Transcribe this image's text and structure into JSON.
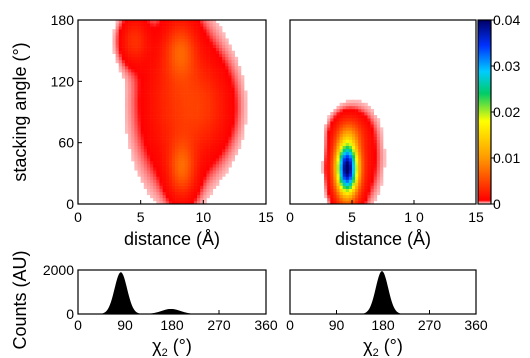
{
  "chart_data": [
    {
      "type": "heatmap",
      "panel": "top-left",
      "xlabel": "distance (Å)",
      "ylabel": "stacking angle (°)",
      "xlim": [
        0,
        15
      ],
      "ylim": [
        0,
        180
      ],
      "xticks": [
        "0",
        "5",
        "10",
        "15"
      ],
      "yticks": [
        "0",
        "60",
        "120",
        "180"
      ],
      "blobs": [
        {
          "x": 4.5,
          "y": 160,
          "sx": 0.7,
          "sy": 14,
          "weight": 0.0035
        },
        {
          "x": 8.0,
          "y": 100,
          "sx": 1.8,
          "sy": 45,
          "weight": 0.0035
        },
        {
          "x": 10.2,
          "y": 95,
          "sx": 1.4,
          "sy": 28,
          "weight": 0.0025
        },
        {
          "x": 8.3,
          "y": 35,
          "sx": 0.7,
          "sy": 18,
          "weight": 0.006
        },
        {
          "x": 8.2,
          "y": 150,
          "sx": 0.8,
          "sy": 18,
          "weight": 0.005
        }
      ]
    },
    {
      "type": "heatmap",
      "panel": "top-right",
      "xlabel": "distance (Å)",
      "xlim": [
        0,
        15
      ],
      "ylim": [
        0,
        180
      ],
      "xticks": [
        "0",
        "5",
        "1 0",
        "15"
      ],
      "blobs": [
        {
          "x": 4.6,
          "y": 35,
          "sx": 0.6,
          "sy": 18,
          "weight": 0.04
        },
        {
          "x": 4.8,
          "y": 70,
          "sx": 0.8,
          "sy": 10,
          "weight": 0.004
        },
        {
          "x": 5.5,
          "y": 45,
          "sx": 1.0,
          "sy": 25,
          "weight": 0.002
        }
      ]
    },
    {
      "type": "area",
      "panel": "bottom-left",
      "xlabel": "χ2 (°)",
      "ylabel": "Counts (AU)",
      "xlim": [
        0,
        360
      ],
      "ylim": [
        0,
        2000
      ],
      "xticks": [
        "0",
        "90",
        "180",
        "270",
        "360"
      ],
      "yticks": [
        "0",
        "2000"
      ],
      "peaks": [
        {
          "x": 82,
          "y": 1900,
          "sx": 12
        },
        {
          "x": 178,
          "y": 230,
          "sx": 18
        }
      ]
    },
    {
      "type": "area",
      "panel": "bottom-right",
      "xlabel": "χ2 (°)",
      "xlim": [
        0,
        360
      ],
      "ylim": [
        0,
        2000
      ],
      "xticks": [
        "0",
        "90",
        "180",
        "270",
        "360"
      ],
      "peaks": [
        {
          "x": 178,
          "y": 1950,
          "sx": 12
        }
      ]
    }
  ],
  "colorbar": {
    "range": [
      0,
      0.04
    ],
    "ticks": [
      "0",
      "0.01",
      "0.02",
      "0.03",
      "0.04"
    ],
    "colors": [
      "#ffffff",
      "#ff0000",
      "#ff9900",
      "#ffff00",
      "#00cc66",
      "#00ccff",
      "#0033ff",
      "#000066"
    ]
  }
}
